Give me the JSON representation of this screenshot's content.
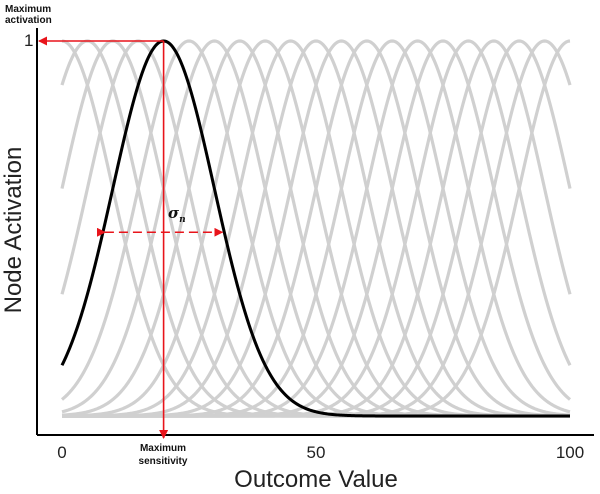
{
  "chart_data": {
    "type": "line",
    "title": "",
    "xlabel": "Outcome Value",
    "ylabel": "Node Activation",
    "xlim": [
      -5,
      103
    ],
    "ylim": [
      -0.05,
      1.0
    ],
    "x_ticks": [
      0,
      50,
      100
    ],
    "y_tick_label": "1",
    "tuning_curves": {
      "centers": [
        0,
        5,
        10,
        15,
        20,
        25,
        30,
        35,
        40,
        45,
        50,
        55,
        60,
        65,
        70,
        75,
        80,
        85,
        90,
        95,
        100
      ],
      "sigma": 10,
      "x_range": [
        0,
        100
      ],
      "color": "#d0d0d0"
    },
    "highlighted_curve": {
      "center": 20,
      "sigma": 10,
      "color": "#000000"
    },
    "annotations": {
      "max_activation": [
        "Maximum",
        "activation"
      ],
      "max_sensitivity": [
        "Maximum",
        "sensitivity"
      ],
      "sigma_symbol": "σ",
      "sigma_subscript": "n",
      "arrow_color": "#e8141b"
    }
  }
}
